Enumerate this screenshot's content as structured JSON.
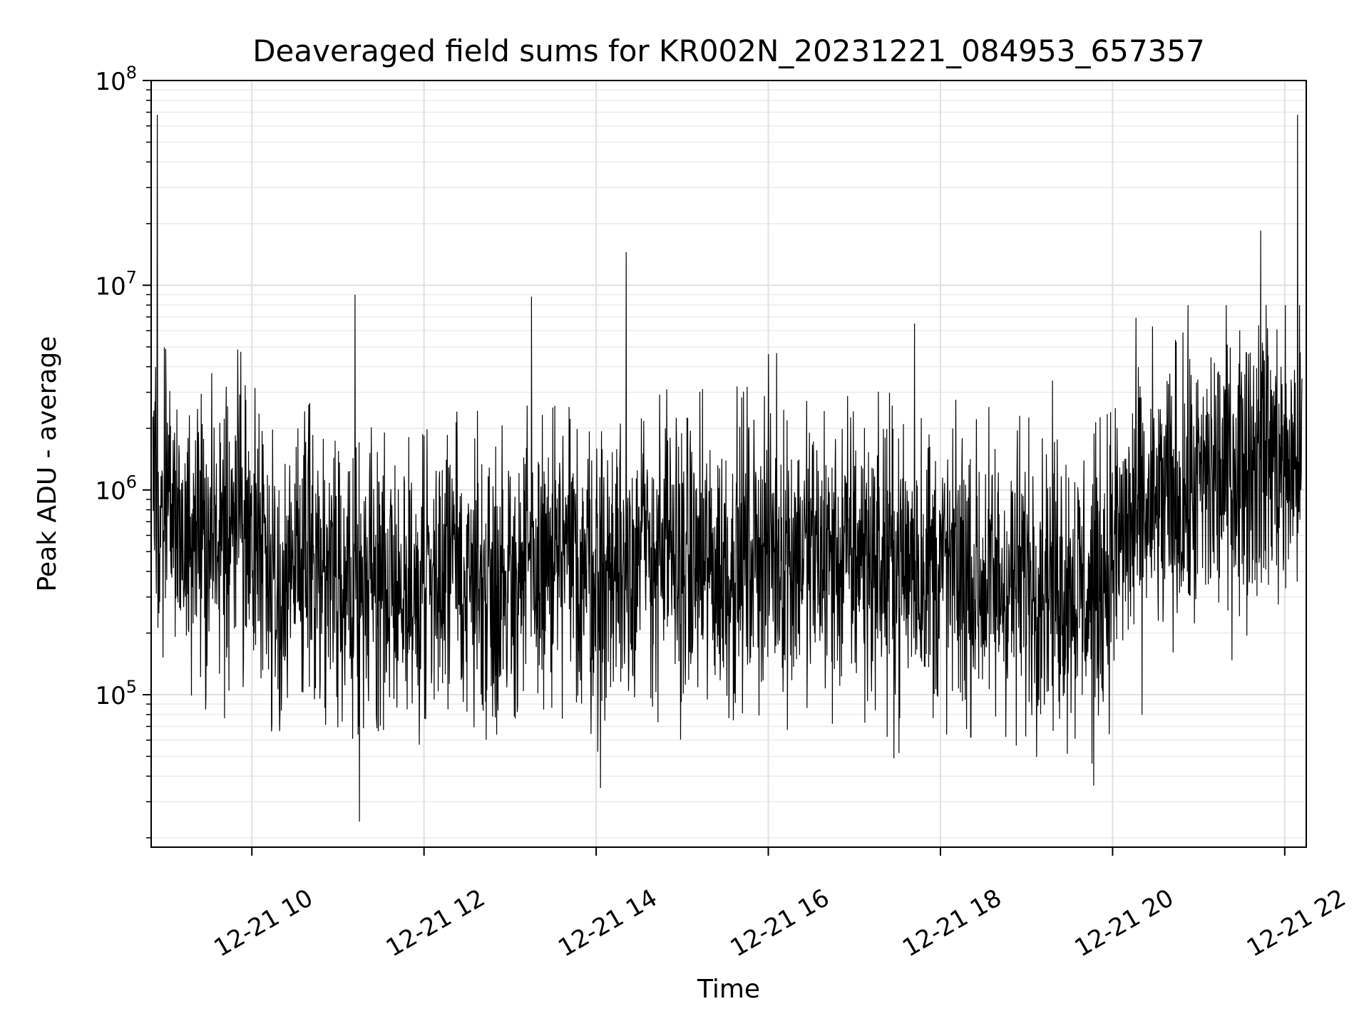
{
  "chart_data": {
    "type": "line",
    "title": "Deaveraged field sums for KR002N_20231221_084953_657357",
    "xlabel": "Time",
    "ylabel": "Peak ADU - average",
    "x_axis": "time",
    "x_tick_labels": [
      "12-21 10",
      "12-21 12",
      "12-21 14",
      "12-21 16",
      "12-21 18",
      "12-21 20",
      "12-21 22"
    ],
    "x_tick_hours": [
      10,
      12,
      14,
      16,
      18,
      20,
      22
    ],
    "xlim_hours": [
      8.83,
      22.25
    ],
    "y_scale": "log",
    "ylim": [
      18000,
      100000000
    ],
    "y_tick_bases": [
      "10",
      "10",
      "10",
      "10"
    ],
    "y_tick_exponents": [
      "5",
      "6",
      "7",
      "8"
    ],
    "y_tick_values": [
      100000,
      1000000,
      10000000,
      100000000
    ],
    "grid": true,
    "series_color": "#000000",
    "series": [
      {
        "x": [
          8.85,
          9.0,
          9.25,
          9.5,
          9.75,
          10.0,
          10.25,
          10.5,
          10.75,
          11.0,
          11.25,
          11.5,
          11.75,
          12.0,
          12.25,
          12.5,
          12.75,
          13.0,
          13.25,
          13.5,
          13.75,
          14.0,
          14.25,
          14.5,
          14.75,
          15.0,
          15.25,
          15.5,
          15.75,
          16.0,
          16.25,
          16.5,
          16.75,
          17.0,
          17.25,
          17.5,
          17.75,
          18.0,
          18.25,
          18.5,
          18.75,
          19.0,
          19.25,
          19.5,
          19.75,
          20.0,
          20.25,
          20.5,
          20.75,
          21.0,
          21.25,
          21.5,
          21.75,
          22.0,
          22.2
        ],
        "y": [
          1500000,
          900000,
          600000,
          550000,
          800000,
          700000,
          300000,
          450000,
          400000,
          350000,
          500000,
          350000,
          300000,
          350000,
          400000,
          380000,
          350000,
          380000,
          400000,
          420000,
          450000,
          400000,
          420000,
          500000,
          480000,
          450000,
          420000,
          400000,
          500000,
          550000,
          500000,
          480000,
          450000,
          500000,
          450000,
          420000,
          450000,
          400000,
          380000,
          350000,
          350000,
          380000,
          400000,
          350000,
          300000,
          500000,
          700000,
          800000,
          900000,
          1000000,
          1200000,
          1400000,
          1600000,
          1300000,
          1500000
        ]
      }
    ],
    "spikes": [
      {
        "x": 8.9,
        "y": 68000000
      },
      {
        "x": 11.2,
        "y": 9000000
      },
      {
        "x": 11.25,
        "y": 24000
      },
      {
        "x": 13.25,
        "y": 8800000
      },
      {
        "x": 14.05,
        "y": 35000
      },
      {
        "x": 14.35,
        "y": 14500000
      },
      {
        "x": 17.7,
        "y": 6500000
      },
      {
        "x": 19.78,
        "y": 36000
      },
      {
        "x": 21.72,
        "y": 18500000
      },
      {
        "x": 22.15,
        "y": 68000000
      }
    ]
  }
}
